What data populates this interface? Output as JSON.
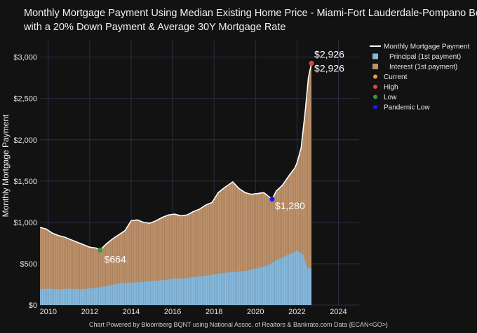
{
  "title": {
    "line1": "Monthly Mortgage Payment Using Median Existing Home Price - Miami-Fort Lauderdale-Pompano Beach, FL",
    "line2": "with a 20% Down Payment & Average 30Y Mortgage Rate"
  },
  "footer": "Chart Powered by Bloomberg BQNT using National Assoc. of Realtors & Bankrate.com Data   {ECAN<GO>}",
  "colors": {
    "background": "#121212",
    "principal": "#86b9dd",
    "interest": "#bd916a",
    "line": "#ffffff",
    "current": "#f0a030",
    "high": "#e8403a",
    "low": "#3a9a3a",
    "pandemic_low": "#1a1aff",
    "grid": "#2a2f45"
  },
  "chart_data": {
    "type": "area",
    "ylabel": "Monthly Mortgage Payment",
    "xlabel": "",
    "xlim": [
      2009.6,
      2025.0
    ],
    "ylim": [
      0,
      3200
    ],
    "x_ticks": [
      2010,
      2012,
      2014,
      2016,
      2018,
      2020,
      2022,
      2024
    ],
    "y_ticks": [
      0,
      500,
      1000,
      1500,
      2000,
      2500,
      3000
    ],
    "y_tick_labels": [
      "$0",
      "$500",
      "$1,000",
      "$1,500",
      "$2,000",
      "$2,500",
      "$3,000"
    ],
    "legend": {
      "placement": "right",
      "entries": [
        "Monthly Mortgage Payment",
        "Principal (1st payment)",
        "Interest (1st payment)",
        "Current",
        "High",
        "Low",
        "Pandemic Low"
      ]
    },
    "series": [
      {
        "name": "Monthly Mortgage Payment",
        "x": [
          2009.6,
          2009.9,
          2010.2,
          2010.5,
          2010.8,
          2011.1,
          2011.4,
          2011.7,
          2012.0,
          2012.3,
          2012.5,
          2012.8,
          2013.1,
          2013.4,
          2013.7,
          2014.0,
          2014.3,
          2014.6,
          2014.9,
          2015.2,
          2015.5,
          2015.8,
          2016.1,
          2016.4,
          2016.7,
          2017.0,
          2017.3,
          2017.6,
          2017.9,
          2018.2,
          2018.5,
          2018.9,
          2019.2,
          2019.5,
          2019.8,
          2020.1,
          2020.4,
          2020.7,
          2020.8,
          2021.0,
          2021.3,
          2021.6,
          2021.9,
          2022.0,
          2022.2,
          2022.4,
          2022.55,
          2022.7
        ],
        "values": [
          940,
          920,
          870,
          840,
          820,
          790,
          760,
          730,
          700,
          690,
          664,
          740,
          800,
          850,
          900,
          1020,
          1030,
          1000,
          990,
          1020,
          1060,
          1090,
          1100,
          1080,
          1090,
          1130,
          1160,
          1210,
          1240,
          1360,
          1420,
          1490,
          1410,
          1360,
          1340,
          1350,
          1360,
          1300,
          1280,
          1380,
          1450,
          1560,
          1660,
          1720,
          1900,
          2350,
          2750,
          2926
        ]
      },
      {
        "name": "Principal (1st payment)",
        "x": [
          2009.6,
          2010.0,
          2010.5,
          2011.0,
          2011.5,
          2012.0,
          2012.5,
          2013.0,
          2013.5,
          2014.0,
          2014.5,
          2015.0,
          2015.5,
          2016.0,
          2016.5,
          2017.0,
          2017.5,
          2018.0,
          2018.5,
          2019.0,
          2019.5,
          2020.0,
          2020.5,
          2021.0,
          2021.5,
          2021.8,
          2022.0,
          2022.3,
          2022.5,
          2022.7
        ],
        "values": [
          190,
          200,
          190,
          200,
          190,
          200,
          215,
          240,
          265,
          270,
          280,
          290,
          300,
          320,
          320,
          340,
          350,
          370,
          390,
          400,
          410,
          440,
          470,
          540,
          600,
          630,
          660,
          610,
          450,
          440
        ]
      }
    ],
    "annotations": [
      {
        "label": "$2,926",
        "x": 2022.7,
        "y": 2926
      },
      {
        "label": "$2,926",
        "x": 2022.7,
        "y": 2926
      },
      {
        "label": "$1,280",
        "x": 2020.8,
        "y": 1280
      },
      {
        "label": "$664",
        "x": 2012.5,
        "y": 664
      }
    ],
    "points": {
      "Current": {
        "x": 2022.7,
        "y": 2926
      },
      "High": {
        "x": 2022.7,
        "y": 2926
      },
      "Low": {
        "x": 2012.5,
        "y": 664
      },
      "Pandemic Low": {
        "x": 2020.8,
        "y": 1280
      }
    }
  }
}
